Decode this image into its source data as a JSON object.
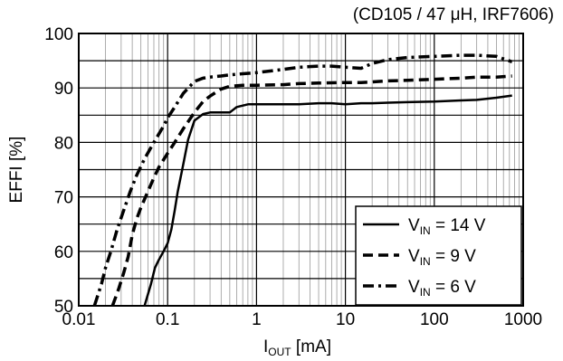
{
  "chart_data": {
    "type": "line",
    "title": "(CD105 / 47 μH, IRF7606)",
    "xlabel": {
      "main": "I",
      "sub": "OUT",
      "unit": " [mA]"
    },
    "ylabel": "EFFI [%]",
    "xscale": "log",
    "xlim": [
      0.01,
      1000
    ],
    "ylim": [
      50,
      100
    ],
    "xticks": [
      0.01,
      0.1,
      1,
      10,
      100,
      1000
    ],
    "xtick_labels": [
      "0.01",
      "0.1",
      "1",
      "10",
      "100",
      "1000"
    ],
    "yticks": [
      50,
      60,
      70,
      80,
      90,
      100
    ],
    "ytick_labels": [
      "50",
      "60",
      "70",
      "80",
      "90",
      "100"
    ],
    "grid": true,
    "legend_position": "bottom-right",
    "series": [
      {
        "name": {
          "main": "V",
          "sub": "IN",
          "rest": " = 14 V"
        },
        "line_style": "solid",
        "x": [
          0.055,
          0.065,
          0.072,
          0.08,
          0.09,
          0.1,
          0.11,
          0.12,
          0.13,
          0.15,
          0.17,
          0.2,
          0.25,
          0.3,
          0.4,
          0.5,
          0.6,
          0.8,
          1,
          2,
          3,
          5,
          7,
          10,
          15,
          20,
          30,
          50,
          100,
          200,
          300,
          500,
          750
        ],
        "y": [
          50,
          54,
          57,
          58.5,
          60,
          61.5,
          64,
          67.5,
          71,
          76,
          80.5,
          84,
          85.2,
          85.5,
          85.5,
          85.5,
          86.5,
          87,
          87,
          87,
          87,
          87.2,
          87.2,
          87,
          87.2,
          87.2,
          87.3,
          87.4,
          87.5,
          87.7,
          87.8,
          88.2,
          88.6
        ]
      },
      {
        "name": {
          "main": "V",
          "sub": "IN",
          "rest": " = 9 V"
        },
        "line_style": "dashed",
        "x": [
          0.024,
          0.028,
          0.032,
          0.036,
          0.04,
          0.045,
          0.05,
          0.06,
          0.07,
          0.08,
          0.1,
          0.12,
          0.15,
          0.2,
          0.25,
          0.3,
          0.4,
          0.5,
          0.7,
          1,
          2,
          3,
          5,
          10,
          15,
          20,
          30,
          50,
          100,
          200,
          300,
          500,
          750
        ],
        "y": [
          50,
          53,
          56,
          59,
          63,
          66,
          68,
          71,
          73.5,
          75.5,
          78,
          80,
          82.5,
          85.5,
          87.5,
          88.5,
          89.8,
          90.3,
          90.5,
          90.5,
          90.6,
          90.8,
          90.9,
          91,
          91,
          91.1,
          91.3,
          91.4,
          91.6,
          91.8,
          92,
          92,
          92.2
        ]
      },
      {
        "name": {
          "main": "V",
          "sub": "IN",
          "rest": " = 6 V"
        },
        "line_style": "dashdot",
        "x": [
          0.015,
          0.018,
          0.02,
          0.023,
          0.027,
          0.032,
          0.038,
          0.045,
          0.055,
          0.07,
          0.09,
          0.1,
          0.12,
          0.15,
          0.2,
          0.25,
          0.3,
          0.4,
          0.5,
          0.7,
          1,
          2,
          3,
          5,
          7,
          10,
          15,
          20,
          30,
          50,
          100,
          200,
          300,
          500,
          750
        ],
        "y": [
          50,
          54,
          57,
          60,
          64,
          67.5,
          71,
          74,
          77,
          80,
          83,
          84.5,
          86.5,
          89,
          91.2,
          91.8,
          92,
          92.2,
          92.4,
          92.6,
          92.8,
          93.4,
          93.8,
          94,
          94,
          93.8,
          93.6,
          94.5,
          95.2,
          95.6,
          95.8,
          96,
          96,
          95.8,
          94.8
        ]
      }
    ]
  }
}
